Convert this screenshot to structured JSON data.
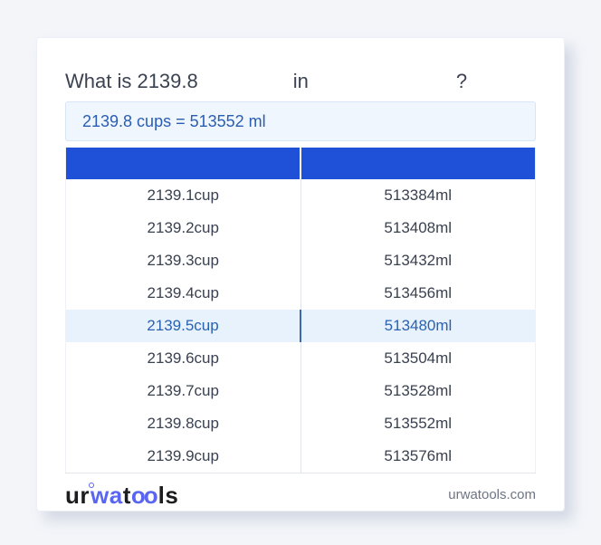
{
  "question": {
    "text": "What is 2139.8",
    "from_unit": "",
    "connector": "in",
    "to_unit": "",
    "mark": "?"
  },
  "result": {
    "text": "2139.8 cups = 513552 ml"
  },
  "table": {
    "columns": [
      {
        "label": ""
      },
      {
        "label": ""
      }
    ],
    "rows": [
      {
        "cup": "2139.1cup",
        "ml": "513384ml",
        "highlight": false
      },
      {
        "cup": "2139.2cup",
        "ml": "513408ml",
        "highlight": false
      },
      {
        "cup": "2139.3cup",
        "ml": "513432ml",
        "highlight": false
      },
      {
        "cup": "2139.4cup",
        "ml": "513456ml",
        "highlight": false
      },
      {
        "cup": "2139.5cup",
        "ml": "513480ml",
        "highlight": true
      },
      {
        "cup": "2139.6cup",
        "ml": "513504ml",
        "highlight": false
      },
      {
        "cup": "2139.7cup",
        "ml": "513528ml",
        "highlight": false
      },
      {
        "cup": "2139.8cup",
        "ml": "513552ml",
        "highlight": false
      },
      {
        "cup": "2139.9cup",
        "ml": "513576ml",
        "highlight": false
      }
    ]
  },
  "footer": {
    "logo": {
      "seg1": "ur",
      "seg2": "wa",
      "seg3": "t",
      "seg4": "oo",
      "seg5": "ls"
    },
    "site": "urwatools.com"
  },
  "colors": {
    "page_background": "#f3f5f9",
    "table_header_blue": "#1e50d8",
    "result_text_blue": "#2a5db4",
    "result_box_bg": "#eff6fe",
    "highlight_row_bg": "#e8f2fd",
    "highlight_text_blue": "#2a62b0",
    "logo_blue": "#5a66f1",
    "body_text": "#3a4150",
    "site_link_gray": "#6d7585"
  }
}
